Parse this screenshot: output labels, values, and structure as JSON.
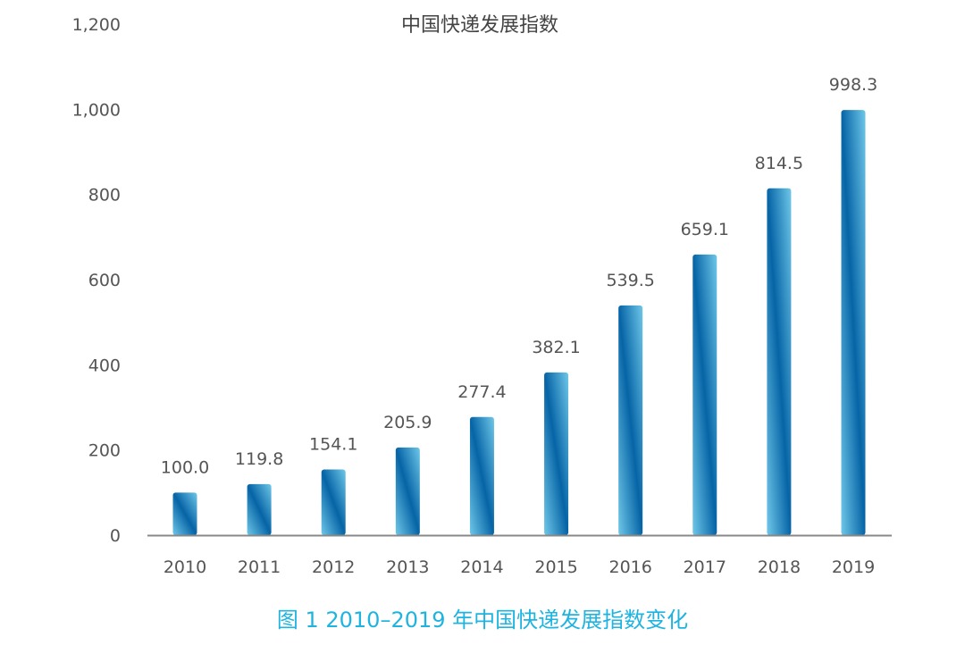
{
  "chart_data": {
    "type": "bar",
    "title": "中国快递发展指数",
    "caption": "图 1  2010–2019 年中国快递发展指数变化",
    "categories": [
      "2010",
      "2011",
      "2012",
      "2013",
      "2014",
      "2015",
      "2016",
      "2017",
      "2018",
      "2019"
    ],
    "values": [
      100.0,
      119.8,
      154.1,
      205.9,
      277.4,
      382.1,
      539.5,
      659.1,
      814.5,
      998.3
    ],
    "value_labels": [
      "100.0",
      "119.8",
      "154.1",
      "205.9",
      "277.4",
      "382.1",
      "539.5",
      "659.1",
      "814.5",
      "998.3"
    ],
    "ylim": [
      0,
      1200
    ],
    "yticks": [
      0,
      200,
      400,
      600,
      800,
      1000,
      1200
    ],
    "ytick_labels": [
      "0",
      "200",
      "400",
      "600",
      "800",
      "1,000",
      "1,200"
    ],
    "xlabel": "",
    "ylabel": "",
    "grid": false,
    "colors": {
      "bar_light": "#6fc7e8",
      "bar_dark": "#0664a6",
      "caption": "#1fb4e0",
      "axis": "#888888"
    }
  }
}
